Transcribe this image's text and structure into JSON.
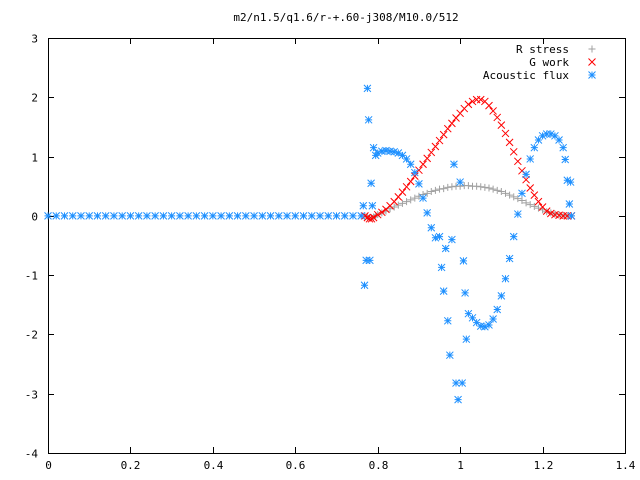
{
  "chart_data": {
    "type": "scatter",
    "title": "m2/n1.5/q1.6/r-+.60-j308/M10.0/512",
    "xlabel": "",
    "ylabel": "",
    "xlim": [
      0,
      1.4
    ],
    "ylim": [
      -4,
      3
    ],
    "x_ticks": [
      "0",
      "0.2",
      "0.4",
      "0.6",
      "0.8",
      "1",
      "1.2",
      "1.4"
    ],
    "y_ticks": [
      "-4",
      "-3",
      "-2",
      "-1",
      "0",
      "1",
      "2",
      "3"
    ],
    "legend_position": "top-right",
    "grid": false,
    "series": [
      {
        "name": "R stress",
        "marker": "plus",
        "color": "#a0a0a0",
        "points": [
          [
            0.769,
            0.0
          ],
          [
            0.775,
            -0.02
          ],
          [
            0.78,
            -0.03
          ],
          [
            0.785,
            -0.03
          ],
          [
            0.79,
            -0.02
          ],
          [
            0.795,
            0.0
          ],
          [
            0.8,
            0.02
          ],
          [
            0.81,
            0.05
          ],
          [
            0.82,
            0.08
          ],
          [
            0.83,
            0.12
          ],
          [
            0.84,
            0.15
          ],
          [
            0.85,
            0.18
          ],
          [
            0.86,
            0.21
          ],
          [
            0.87,
            0.24
          ],
          [
            0.88,
            0.27
          ],
          [
            0.89,
            0.3
          ],
          [
            0.9,
            0.33
          ],
          [
            0.91,
            0.36
          ],
          [
            0.92,
            0.38
          ],
          [
            0.93,
            0.41
          ],
          [
            0.94,
            0.43
          ],
          [
            0.95,
            0.45
          ],
          [
            0.96,
            0.46
          ],
          [
            0.97,
            0.48
          ],
          [
            0.98,
            0.49
          ],
          [
            0.99,
            0.5
          ],
          [
            1.0,
            0.5
          ],
          [
            1.01,
            0.51
          ],
          [
            1.02,
            0.51
          ],
          [
            1.03,
            0.5
          ],
          [
            1.04,
            0.5
          ],
          [
            1.05,
            0.49
          ],
          [
            1.06,
            0.48
          ],
          [
            1.07,
            0.47
          ],
          [
            1.08,
            0.45
          ],
          [
            1.09,
            0.43
          ],
          [
            1.1,
            0.41
          ],
          [
            1.11,
            0.38
          ],
          [
            1.12,
            0.35
          ],
          [
            1.13,
            0.32
          ],
          [
            1.14,
            0.29
          ],
          [
            1.15,
            0.26
          ],
          [
            1.16,
            0.22
          ],
          [
            1.17,
            0.19
          ],
          [
            1.18,
            0.16
          ],
          [
            1.19,
            0.13
          ],
          [
            1.2,
            0.1
          ],
          [
            1.21,
            0.07
          ],
          [
            1.22,
            0.05
          ],
          [
            1.23,
            0.03
          ],
          [
            1.24,
            0.02
          ],
          [
            1.25,
            0.01
          ],
          [
            1.26,
            0.0
          ],
          [
            1.27,
            0.0
          ]
        ]
      },
      {
        "name": "G work",
        "marker": "cross",
        "color": "#ff0000",
        "points": [
          [
            0.769,
            0.0
          ],
          [
            0.775,
            -0.03
          ],
          [
            0.78,
            -0.05
          ],
          [
            0.785,
            -0.05
          ],
          [
            0.79,
            -0.03
          ],
          [
            0.8,
            0.02
          ],
          [
            0.81,
            0.06
          ],
          [
            0.82,
            0.11
          ],
          [
            0.83,
            0.17
          ],
          [
            0.84,
            0.24
          ],
          [
            0.85,
            0.32
          ],
          [
            0.86,
            0.4
          ],
          [
            0.87,
            0.49
          ],
          [
            0.88,
            0.58
          ],
          [
            0.89,
            0.67
          ],
          [
            0.9,
            0.77
          ],
          [
            0.91,
            0.87
          ],
          [
            0.92,
            0.97
          ],
          [
            0.93,
            1.07
          ],
          [
            0.94,
            1.17
          ],
          [
            0.95,
            1.27
          ],
          [
            0.96,
            1.37
          ],
          [
            0.97,
            1.47
          ],
          [
            0.98,
            1.56
          ],
          [
            0.99,
            1.65
          ],
          [
            1.0,
            1.73
          ],
          [
            1.01,
            1.81
          ],
          [
            1.02,
            1.88
          ],
          [
            1.03,
            1.93
          ],
          [
            1.04,
            1.96
          ],
          [
            1.05,
            1.96
          ],
          [
            1.06,
            1.93
          ],
          [
            1.07,
            1.86
          ],
          [
            1.08,
            1.77
          ],
          [
            1.09,
            1.66
          ],
          [
            1.1,
            1.53
          ],
          [
            1.11,
            1.39
          ],
          [
            1.12,
            1.24
          ],
          [
            1.13,
            1.08
          ],
          [
            1.14,
            0.92
          ],
          [
            1.15,
            0.76
          ],
          [
            1.16,
            0.61
          ],
          [
            1.17,
            0.47
          ],
          [
            1.18,
            0.35
          ],
          [
            1.19,
            0.24
          ],
          [
            1.2,
            0.15
          ],
          [
            1.21,
            0.08
          ],
          [
            1.22,
            0.04
          ],
          [
            1.23,
            0.02
          ],
          [
            1.24,
            0.01
          ],
          [
            1.25,
            0.0
          ],
          [
            1.26,
            0.0
          ],
          [
            1.27,
            0.0
          ]
        ]
      },
      {
        "name": "Acoustic flux",
        "marker": "star",
        "color": "#1e90ff",
        "points": [
          [
            0.0,
            0.0
          ],
          [
            0.02,
            0.0
          ],
          [
            0.04,
            0.0
          ],
          [
            0.06,
            0.0
          ],
          [
            0.08,
            0.0
          ],
          [
            0.1,
            0.0
          ],
          [
            0.12,
            0.0
          ],
          [
            0.14,
            0.0
          ],
          [
            0.16,
            0.0
          ],
          [
            0.18,
            0.0
          ],
          [
            0.2,
            0.0
          ],
          [
            0.22,
            0.0
          ],
          [
            0.24,
            0.0
          ],
          [
            0.26,
            0.0
          ],
          [
            0.28,
            0.0
          ],
          [
            0.3,
            0.0
          ],
          [
            0.32,
            0.0
          ],
          [
            0.34,
            0.0
          ],
          [
            0.36,
            0.0
          ],
          [
            0.38,
            0.0
          ],
          [
            0.4,
            0.0
          ],
          [
            0.42,
            0.0
          ],
          [
            0.44,
            0.0
          ],
          [
            0.46,
            0.0
          ],
          [
            0.48,
            0.0
          ],
          [
            0.5,
            0.0
          ],
          [
            0.52,
            0.0
          ],
          [
            0.54,
            0.0
          ],
          [
            0.56,
            0.0
          ],
          [
            0.58,
            0.0
          ],
          [
            0.6,
            0.0
          ],
          [
            0.62,
            0.0
          ],
          [
            0.64,
            0.0
          ],
          [
            0.66,
            0.0
          ],
          [
            0.68,
            0.0
          ],
          [
            0.7,
            0.0
          ],
          [
            0.72,
            0.0
          ],
          [
            0.74,
            0.0
          ],
          [
            0.76,
            0.0
          ],
          [
            0.765,
            0.17
          ],
          [
            0.768,
            -1.17
          ],
          [
            0.772,
            -0.75
          ],
          [
            0.775,
            2.15
          ],
          [
            0.778,
            1.62
          ],
          [
            0.781,
            -0.75
          ],
          [
            0.784,
            0.55
          ],
          [
            0.787,
            0.17
          ],
          [
            0.79,
            1.15
          ],
          [
            0.795,
            1.02
          ],
          [
            0.8,
            1.06
          ],
          [
            0.81,
            1.09
          ],
          [
            0.82,
            1.1
          ],
          [
            0.83,
            1.09
          ],
          [
            0.84,
            1.08
          ],
          [
            0.85,
            1.06
          ],
          [
            0.86,
            1.02
          ],
          [
            0.87,
            0.96
          ],
          [
            0.88,
            0.87
          ],
          [
            0.89,
            0.73
          ],
          [
            0.9,
            0.54
          ],
          [
            0.91,
            0.3
          ],
          [
            0.92,
            0.05
          ],
          [
            0.93,
            -0.2
          ],
          [
            0.94,
            -0.37
          ],
          [
            0.95,
            -0.35
          ],
          [
            0.955,
            -0.87
          ],
          [
            0.96,
            -1.27
          ],
          [
            0.965,
            -0.55
          ],
          [
            0.97,
            -1.77
          ],
          [
            0.975,
            -2.35
          ],
          [
            0.98,
            -0.4
          ],
          [
            0.985,
            0.87
          ],
          [
            0.99,
            -2.82
          ],
          [
            0.995,
            -3.1
          ],
          [
            1.0,
            0.57
          ],
          [
            1.005,
            -2.82
          ],
          [
            1.008,
            -0.76
          ],
          [
            1.012,
            -1.3
          ],
          [
            1.015,
            -2.08
          ],
          [
            1.02,
            -1.65
          ],
          [
            1.03,
            -1.72
          ],
          [
            1.04,
            -1.8
          ],
          [
            1.05,
            -1.86
          ],
          [
            1.06,
            -1.87
          ],
          [
            1.07,
            -1.84
          ],
          [
            1.08,
            -1.74
          ],
          [
            1.09,
            -1.58
          ],
          [
            1.1,
            -1.35
          ],
          [
            1.11,
            -1.06
          ],
          [
            1.12,
            -0.72
          ],
          [
            1.13,
            -0.35
          ],
          [
            1.14,
            0.03
          ],
          [
            1.15,
            0.38
          ],
          [
            1.16,
            0.7
          ],
          [
            1.17,
            0.96
          ],
          [
            1.18,
            1.15
          ],
          [
            1.19,
            1.28
          ],
          [
            1.2,
            1.35
          ],
          [
            1.21,
            1.38
          ],
          [
            1.22,
            1.38
          ],
          [
            1.23,
            1.35
          ],
          [
            1.24,
            1.28
          ],
          [
            1.25,
            1.15
          ],
          [
            1.255,
            0.95
          ],
          [
            1.26,
            0.6
          ],
          [
            1.265,
            0.2
          ],
          [
            1.268,
            0.57
          ],
          [
            1.27,
            0.0
          ]
        ]
      }
    ]
  }
}
